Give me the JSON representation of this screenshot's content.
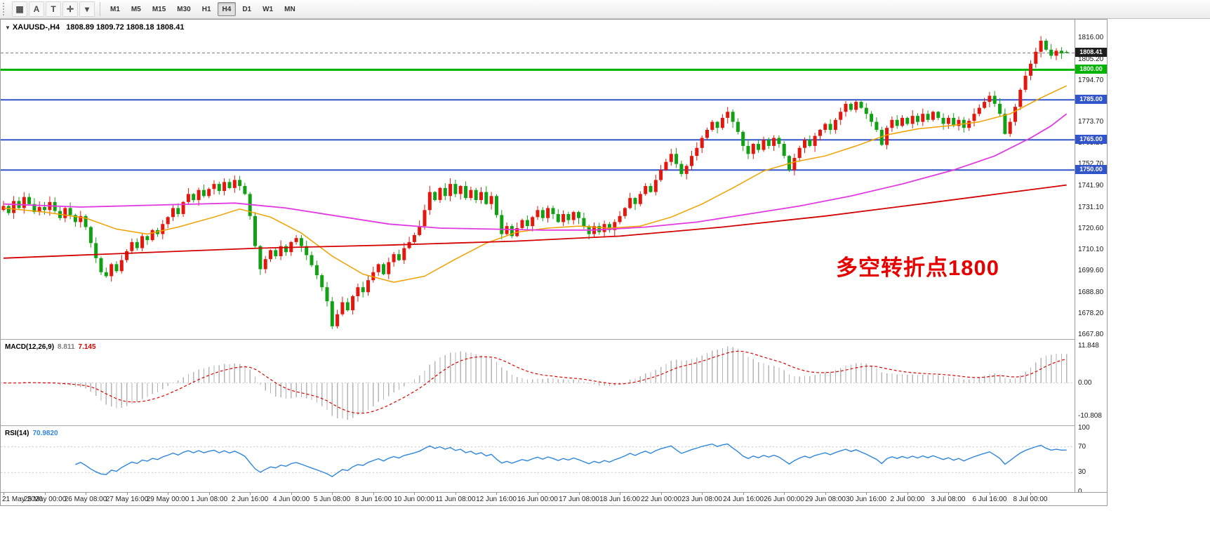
{
  "colors": {
    "up": "#e3170d",
    "down": "#12a114",
    "ma_fast": "#f2a100",
    "ma_mid": "#e23ae2",
    "ma_slow": "#d40000",
    "hline_green": "#00b300",
    "hline_blue": "#3355cc",
    "macd_hist": "#b5b5b5",
    "macd_signal": "#e00000",
    "rsi_line": "#2e86de",
    "annotation": "#e60000",
    "price_badge": "#1e1e1e"
  },
  "toolbar": {
    "left_buttons": [
      {
        "name": "chart-type-button",
        "glyph": "▦"
      },
      {
        "name": "cursor-tool-button",
        "glyph": "A"
      },
      {
        "name": "text-tool-button",
        "glyph": "T"
      },
      {
        "name": "crosshair-tool-button",
        "glyph": "✛"
      },
      {
        "name": "tools-dropdown-button",
        "glyph": "▾"
      }
    ],
    "timeframes": [
      "M1",
      "M5",
      "M15",
      "M30",
      "H1",
      "H4",
      "D1",
      "W1",
      "MN"
    ],
    "selected": "H4"
  },
  "chart": {
    "symbol_icon": "▼",
    "symbol": "XAUUSD-,H4",
    "ohlc_text": "1808.89 1809.72 1808.18 1808.41",
    "annotation": "多空转折点1800",
    "current_price": "1808.41",
    "hlines": [
      {
        "price": 1800,
        "label": "1800.00",
        "color": "#00b300",
        "width": 3
      },
      {
        "price": 1785,
        "label": "1785.00",
        "color": "#3355cc",
        "width": 2
      },
      {
        "price": 1765,
        "label": "1765.00",
        "color": "#3355cc",
        "width": 2
      },
      {
        "price": 1750,
        "label": "1750.00",
        "color": "#3355cc",
        "width": 2
      }
    ]
  },
  "macd": {
    "label": "MACD(12,26,9)",
    "value_main": "8.811",
    "value_signal": "7.145",
    "ticks": [
      "11.848",
      "0.00",
      "-10.808"
    ]
  },
  "rsi": {
    "label": "RSI(14)",
    "value": "70.9820",
    "ticks": [
      "100",
      "70",
      "30",
      "0"
    ],
    "levels": [
      70,
      30
    ]
  },
  "chart_data": [
    {
      "type": "candlestick",
      "symbol": "XAUUSD-",
      "timeframe": "H4",
      "ylim": [
        1666,
        1825
      ],
      "y_ticks": [
        "1816.00",
        "1805.20",
        "1794.70",
        "1784.20",
        "1773.70",
        "1763.20",
        "1752.70",
        "1741.90",
        "1731.10",
        "1720.60",
        "1710.10",
        "1699.60",
        "1688.80",
        "1678.20",
        "1667.80"
      ],
      "x_labels": [
        "21 May 2020",
        "25 May 00:00",
        "26 May 08:00",
        "27 May 16:00",
        "29 May 00:00",
        "1 Jun 08:00",
        "2 Jun 16:00",
        "4 Jun 00:00",
        "5 Jun 08:00",
        "8 Jun 16:00",
        "10 Jun 00:00",
        "11 Jun 08:00",
        "12 Jun 16:00",
        "16 Jun 00:00",
        "17 Jun 08:00",
        "18 Jun 16:00",
        "22 Jun 00:00",
        "23 Jun 08:00",
        "24 Jun 16:00",
        "26 Jun 00:00",
        "29 Jun 08:00",
        "30 Jun 16:00",
        "2 Jul 00:00",
        "3 Jul 08:00",
        "6 Jul 16:00",
        "8 Jul 00:00"
      ],
      "bars_per_label": 8,
      "closes": [
        1732,
        1728.5,
        1734.5,
        1731,
        1736.5,
        1733,
        1729,
        1731.5,
        1730,
        1734,
        1729.5,
        1726,
        1731,
        1727.5,
        1724,
        1727,
        1721.5,
        1713.5,
        1706,
        1699,
        1697,
        1703,
        1699.5,
        1705,
        1709.5,
        1714,
        1711,
        1717,
        1715,
        1720,
        1718,
        1723,
        1726.5,
        1731,
        1728,
        1734,
        1738,
        1735,
        1740,
        1737,
        1740.5,
        1743,
        1739.5,
        1744,
        1741,
        1745,
        1742,
        1738,
        1727,
        1712,
        1700.5,
        1705.5,
        1710,
        1707,
        1712,
        1709,
        1714,
        1716,
        1712,
        1707.5,
        1702.5,
        1697.5,
        1691.5,
        1684.5,
        1672,
        1678,
        1684,
        1680,
        1687,
        1691.5,
        1689,
        1695,
        1699,
        1703,
        1698,
        1704,
        1708,
        1705,
        1711,
        1714,
        1717.5,
        1722,
        1730,
        1739,
        1735,
        1741,
        1737,
        1743,
        1738,
        1742,
        1736,
        1740,
        1735,
        1739,
        1733,
        1737,
        1727.5,
        1718,
        1722,
        1717,
        1721,
        1725,
        1722,
        1726.5,
        1730,
        1726,
        1731,
        1728,
        1724,
        1728,
        1725,
        1729,
        1726,
        1722,
        1718,
        1722,
        1719,
        1723,
        1720,
        1724,
        1727,
        1731,
        1736,
        1733,
        1738,
        1742,
        1739,
        1745,
        1750,
        1754,
        1758,
        1753,
        1748,
        1752,
        1757,
        1761,
        1766,
        1770,
        1774,
        1771,
        1776,
        1779,
        1774,
        1769,
        1762,
        1758,
        1763,
        1760,
        1765,
        1762,
        1766,
        1763,
        1757,
        1750,
        1756,
        1761,
        1765,
        1762,
        1767,
        1770,
        1773,
        1770,
        1775,
        1779,
        1783,
        1780,
        1784,
        1781,
        1778,
        1774,
        1770,
        1762.5,
        1771,
        1775,
        1772,
        1776,
        1773,
        1777,
        1774,
        1778,
        1775,
        1779,
        1776,
        1773,
        1776,
        1772,
        1775,
        1771,
        1774.5,
        1778,
        1781,
        1784,
        1787,
        1783,
        1778,
        1768,
        1774,
        1781.5,
        1790,
        1797,
        1803,
        1809,
        1814.5,
        1810,
        1807,
        1809.5,
        1808.2,
        1808.41
      ],
      "last_bar": {
        "open": 1808.89,
        "high": 1809.72,
        "low": 1808.18,
        "close": 1808.41
      },
      "moving_averages": [
        {
          "name": "ma-fast-orange",
          "color": "#f2a100",
          "points": [
            [
              0,
              1731
            ],
            [
              8,
              1729
            ],
            [
              16,
              1726
            ],
            [
              22,
              1720.5
            ],
            [
              28,
              1718
            ],
            [
              34,
              1721.5
            ],
            [
              41,
              1726.5
            ],
            [
              46,
              1730.5
            ],
            [
              52,
              1726.5
            ],
            [
              58,
              1718.5
            ],
            [
              64,
              1707
            ],
            [
              70,
              1698
            ],
            [
              76,
              1694
            ],
            [
              82,
              1697
            ],
            [
              88,
              1705.5
            ],
            [
              94,
              1713.5
            ],
            [
              100,
              1719
            ],
            [
              106,
              1721
            ],
            [
              112,
              1722
            ],
            [
              118,
              1721
            ],
            [
              124,
              1722
            ],
            [
              130,
              1726.5
            ],
            [
              136,
              1733
            ],
            [
              142,
              1741
            ],
            [
              148,
              1749.5
            ],
            [
              154,
              1754
            ],
            [
              160,
              1757
            ],
            [
              166,
              1762
            ],
            [
              172,
              1767.5
            ],
            [
              178,
              1770.5
            ],
            [
              184,
              1772
            ],
            [
              190,
              1774
            ],
            [
              196,
              1778
            ],
            [
              202,
              1786
            ],
            [
              207,
              1792
            ]
          ]
        },
        {
          "name": "ma-mid-magenta",
          "color": "#e23ae2",
          "points": [
            [
              0,
              1733
            ],
            [
              15,
              1731.5
            ],
            [
              30,
              1732.5
            ],
            [
              45,
              1733.5
            ],
            [
              55,
              1731
            ],
            [
              65,
              1727
            ],
            [
              75,
              1723
            ],
            [
              85,
              1721
            ],
            [
              95,
              1720.5
            ],
            [
              105,
              1720
            ],
            [
              115,
              1720
            ],
            [
              125,
              1721.5
            ],
            [
              135,
              1724
            ],
            [
              145,
              1728
            ],
            [
              155,
              1732
            ],
            [
              165,
              1737
            ],
            [
              175,
              1743
            ],
            [
              185,
              1750
            ],
            [
              193,
              1757
            ],
            [
              200,
              1766
            ],
            [
              204,
              1772
            ],
            [
              207,
              1778
            ]
          ]
        },
        {
          "name": "ma-slow-red",
          "color": "#d40000",
          "points": [
            [
              0,
              1706
            ],
            [
              25,
              1708.5
            ],
            [
              50,
              1711
            ],
            [
              75,
              1712.5
            ],
            [
              100,
              1714.5
            ],
            [
              120,
              1717
            ],
            [
              140,
              1721.5
            ],
            [
              160,
              1727
            ],
            [
              180,
              1733.5
            ],
            [
              195,
              1738.5
            ],
            [
              207,
              1742.5
            ]
          ]
        }
      ]
    },
    {
      "type": "line",
      "name": "MACD(12,26,9)",
      "current": [
        8.811,
        7.145
      ],
      "ylim": [
        -13.5,
        13.5
      ],
      "ticks": [
        11.848,
        0,
        -10.808
      ],
      "derived_from": "closes",
      "components": [
        "histogram",
        "signal"
      ]
    },
    {
      "type": "line",
      "name": "RSI(14)",
      "current": 70.982,
      "ylim": [
        0,
        100
      ],
      "ticks": [
        100,
        70,
        30,
        0
      ],
      "levels": [
        70,
        30
      ],
      "derived_from": "closes"
    }
  ]
}
